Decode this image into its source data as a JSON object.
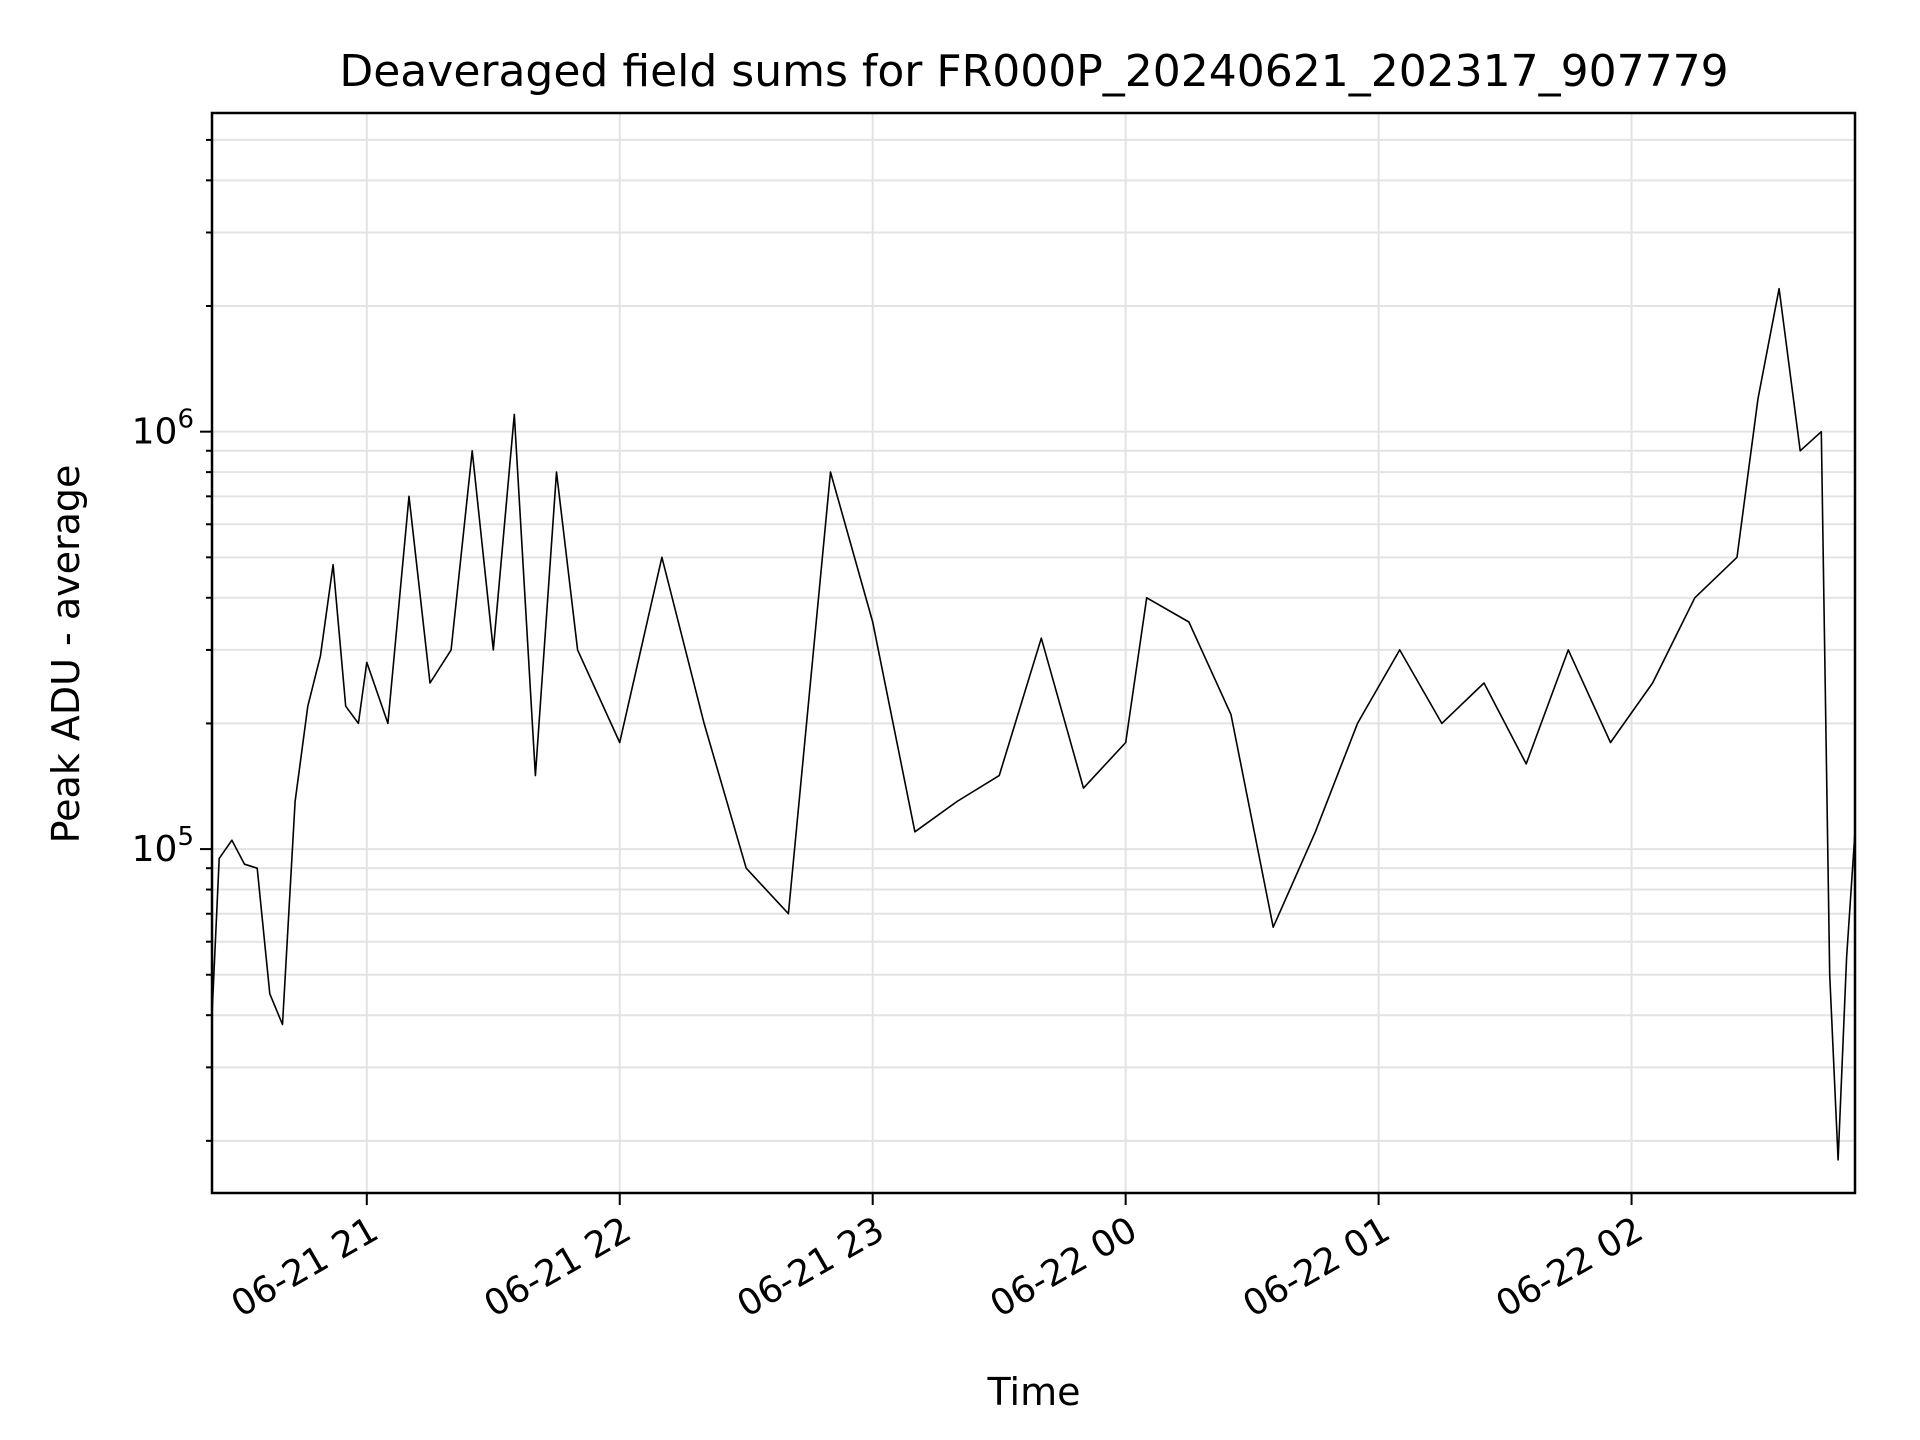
{
  "chart_data": {
    "type": "line",
    "title": "Deaveraged field sums for FR000P_20240621_202317_907779",
    "xlabel": "Time",
    "ylabel": "Peak ADU - average",
    "yscale": "log",
    "ylim": [
      15000,
      5800000
    ],
    "xlim": [
      "2024-06-21 20:23:17",
      "2024-06-22 02:53:00"
    ],
    "x_ticks": [
      "06-21 21",
      "06-21 22",
      "06-21 23",
      "06-22 00",
      "06-22 01",
      "06-22 02"
    ],
    "y_ticks": [
      {
        "base": "10",
        "exp": "5"
      },
      {
        "base": "10",
        "exp": "6"
      }
    ],
    "grid": true,
    "line_color": "#000000",
    "series": [
      {
        "points": [
          [
            "2024-06-21 20:23:17",
            40000
          ],
          [
            "2024-06-21 20:25:00",
            95000
          ],
          [
            "2024-06-21 20:28:00",
            105000
          ],
          [
            "2024-06-21 20:31:00",
            92000
          ],
          [
            "2024-06-21 20:34:00",
            90000
          ],
          [
            "2024-06-21 20:37:00",
            45000
          ],
          [
            "2024-06-21 20:40:00",
            38000
          ],
          [
            "2024-06-21 20:43:00",
            130000
          ],
          [
            "2024-06-21 20:46:00",
            220000
          ],
          [
            "2024-06-21 20:49:00",
            290000
          ],
          [
            "2024-06-21 20:52:00",
            480000
          ],
          [
            "2024-06-21 20:55:00",
            220000
          ],
          [
            "2024-06-21 20:58:00",
            200000
          ],
          [
            "2024-06-21 21:00:00",
            280000
          ],
          [
            "2024-06-21 21:05:00",
            200000
          ],
          [
            "2024-06-21 21:10:00",
            700000
          ],
          [
            "2024-06-21 21:15:00",
            250000
          ],
          [
            "2024-06-21 21:20:00",
            300000
          ],
          [
            "2024-06-21 21:25:00",
            900000
          ],
          [
            "2024-06-21 21:30:00",
            300000
          ],
          [
            "2024-06-21 21:35:00",
            1100000
          ],
          [
            "2024-06-21 21:40:00",
            150000
          ],
          [
            "2024-06-21 21:45:00",
            800000
          ],
          [
            "2024-06-21 21:50:00",
            300000
          ],
          [
            "2024-06-21 22:00:00",
            180000
          ],
          [
            "2024-06-21 22:10:00",
            500000
          ],
          [
            "2024-06-21 22:20:00",
            200000
          ],
          [
            "2024-06-21 22:30:00",
            90000
          ],
          [
            "2024-06-21 22:40:00",
            70000
          ],
          [
            "2024-06-21 22:50:00",
            800000
          ],
          [
            "2024-06-21 23:00:00",
            350000
          ],
          [
            "2024-06-21 23:10:00",
            110000
          ],
          [
            "2024-06-21 23:20:00",
            130000
          ],
          [
            "2024-06-21 23:30:00",
            150000
          ],
          [
            "2024-06-21 23:40:00",
            320000
          ],
          [
            "2024-06-21 23:50:00",
            140000
          ],
          [
            "2024-06-22 00:00:00",
            180000
          ],
          [
            "2024-06-22 00:05:00",
            400000
          ],
          [
            "2024-06-22 00:15:00",
            350000
          ],
          [
            "2024-06-22 00:25:00",
            210000
          ],
          [
            "2024-06-22 00:35:00",
            65000
          ],
          [
            "2024-06-22 00:45:00",
            110000
          ],
          [
            "2024-06-22 00:55:00",
            200000
          ],
          [
            "2024-06-22 01:05:00",
            300000
          ],
          [
            "2024-06-22 01:15:00",
            200000
          ],
          [
            "2024-06-22 01:25:00",
            250000
          ],
          [
            "2024-06-22 01:35:00",
            160000
          ],
          [
            "2024-06-22 01:45:00",
            300000
          ],
          [
            "2024-06-22 01:55:00",
            180000
          ],
          [
            "2024-06-22 02:05:00",
            250000
          ],
          [
            "2024-06-22 02:15:00",
            400000
          ],
          [
            "2024-06-22 02:25:00",
            500000
          ],
          [
            "2024-06-22 02:30:00",
            1200000
          ],
          [
            "2024-06-22 02:35:00",
            2200000
          ],
          [
            "2024-06-22 02:40:00",
            900000
          ],
          [
            "2024-06-22 02:45:00",
            1000000
          ],
          [
            "2024-06-22 02:47:00",
            50000
          ],
          [
            "2024-06-22 02:49:00",
            18000
          ],
          [
            "2024-06-22 02:51:00",
            55000
          ],
          [
            "2024-06-22 02:53:00",
            110000
          ]
        ]
      }
    ]
  }
}
